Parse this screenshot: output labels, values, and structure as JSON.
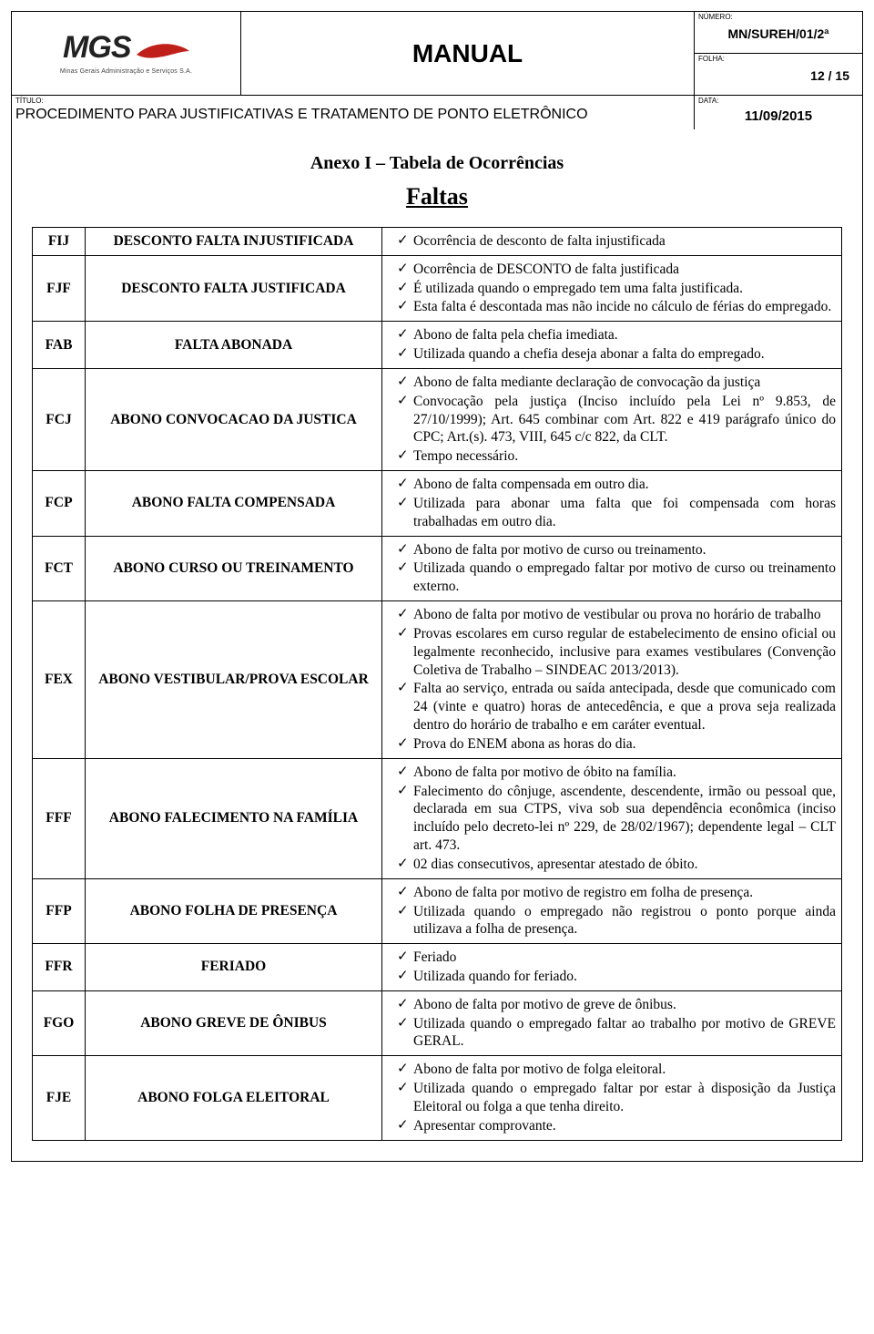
{
  "header": {
    "logo_main": "MGS",
    "logo_sub": "Minas Gerais Administração e Serviços S.A.",
    "manual_label": "MANUAL",
    "numero_label": "NÚMERO:",
    "numero_value": "MN/SUREH/01/2ª",
    "folha_label": "FOLHA:",
    "folha_value": "12 / 15",
    "titulo_label": "TÍTULO:",
    "titulo_value": "PROCEDIMENTO PARA JUSTIFICATIVAS E TRATAMENTO DE PONTO ELETRÔNICO",
    "data_label": "DATA:",
    "data_value": "11/09/2015"
  },
  "headings": {
    "anexo": "Anexo I – Tabela de Ocorrências",
    "faltas": "Faltas"
  },
  "rows": [
    {
      "code": "FIJ",
      "name": "DESCONTO FALTA INJUSTIFICADA",
      "items": [
        {
          "text": "Ocorrência de desconto de falta injustificada"
        }
      ]
    },
    {
      "code": "FJF",
      "name": "DESCONTO FALTA JUSTIFICADA",
      "items": [
        {
          "text": "Ocorrência de DESCONTO de falta justificada"
        },
        {
          "text": "É utilizada quando o empregado tem uma falta justificada.",
          "justify": true
        },
        {
          "text": "Esta falta é descontada mas não incide no cálculo de férias do empregado."
        }
      ]
    },
    {
      "code": "FAB",
      "name": "FALTA ABONADA",
      "items": [
        {
          "text": "Abono de falta pela chefia imediata."
        },
        {
          "text": "Utilizada quando a chefia deseja abonar a falta do empregado.",
          "justify": true
        }
      ]
    },
    {
      "code": "FCJ",
      "name": "ABONO CONVOCACAO DA JUSTICA",
      "items": [
        {
          "text": "Abono de falta mediante declaração de convocação da justiça",
          "justify": true
        },
        {
          "text": "Convocação pela justiça (Inciso incluído pela Lei nº 9.853, de 27/10/1999); Art. 645 combinar com Art. 822 e 419 parágrafo único do CPC; Art.(s). 473, VIII, 645 c/c 822, da CLT.",
          "justify": true
        },
        {
          "text": "Tempo necessário."
        }
      ]
    },
    {
      "code": "FCP",
      "name": "ABONO FALTA COMPENSADA",
      "items": [
        {
          "text": "Abono de falta compensada em outro dia."
        },
        {
          "text": "Utilizada para abonar uma falta que foi compensada com horas trabalhadas em outro dia.",
          "justify": true
        }
      ]
    },
    {
      "code": "FCT",
      "name": "ABONO CURSO OU TREINAMENTO",
      "items": [
        {
          "text": "Abono de falta por motivo de curso ou treinamento."
        },
        {
          "text": "Utilizada quando o empregado faltar por motivo de curso ou treinamento externo.",
          "justify": true
        }
      ]
    },
    {
      "code": "FEX",
      "name": "ABONO VESTIBULAR/PROVA ESCOLAR",
      "items": [
        {
          "text": "Abono de falta por motivo de vestibular ou prova no horário de trabalho"
        },
        {
          "text": "Provas escolares em curso regular de estabelecimento de ensino oficial ou legalmente reconhecido, inclusive para exames vestibulares (Convenção Coletiva de Trabalho – SINDEAC 2013/2013).",
          "justify": true
        },
        {
          "text": "Falta ao serviço, entrada ou saída antecipada, desde que comunicado com 24 (vinte e quatro) horas de antecedência, e que a prova seja realizada dentro do horário de trabalho e em caráter eventual.",
          "justify": true
        },
        {
          "text": "Prova do ENEM abona as horas do dia."
        }
      ]
    },
    {
      "code": "FFF",
      "name": "ABONO FALECIMENTO NA FAMÍLIA",
      "items": [
        {
          "text": "Abono de falta por motivo de óbito na família."
        },
        {
          "text": "Falecimento do cônjuge, ascendente, descendente, irmão ou pessoal que, declarada em sua CTPS, viva sob sua dependência econômica (inciso incluído pelo decreto-lei nº 229, de 28/02/1967); dependente legal – CLT art. 473.",
          "justify": true
        },
        {
          "text": "02 dias consecutivos, apresentar atestado de óbito."
        }
      ]
    },
    {
      "code": "FFP",
      "name": "ABONO FOLHA DE PRESENÇA",
      "items": [
        {
          "text": "Abono de falta por motivo de registro em folha de presença.",
          "justify": true
        },
        {
          "text": "Utilizada quando o empregado não registrou o ponto porque ainda utilizava a folha de presença.",
          "justify": true
        }
      ]
    },
    {
      "code": "FFR",
      "name": "FERIADO",
      "items": [
        {
          "text": "Feriado"
        },
        {
          "text": "Utilizada quando for feriado."
        }
      ]
    },
    {
      "code": "FGO",
      "name": "ABONO GREVE DE ÔNIBUS",
      "items": [
        {
          "text": "Abono de falta por motivo de greve de ônibus."
        },
        {
          "text": "Utilizada quando o empregado faltar ao trabalho por motivo de GREVE GERAL.",
          "justify": true
        }
      ]
    },
    {
      "code": "FJE",
      "name": "ABONO FOLGA ELEITORAL",
      "items": [
        {
          "text": "Abono de falta por motivo de folga eleitoral."
        },
        {
          "text": "Utilizada quando o empregado faltar por estar à disposição da Justiça Eleitoral ou folga a que tenha direito.",
          "justify": true
        },
        {
          "text": "Apresentar comprovante."
        }
      ]
    }
  ]
}
